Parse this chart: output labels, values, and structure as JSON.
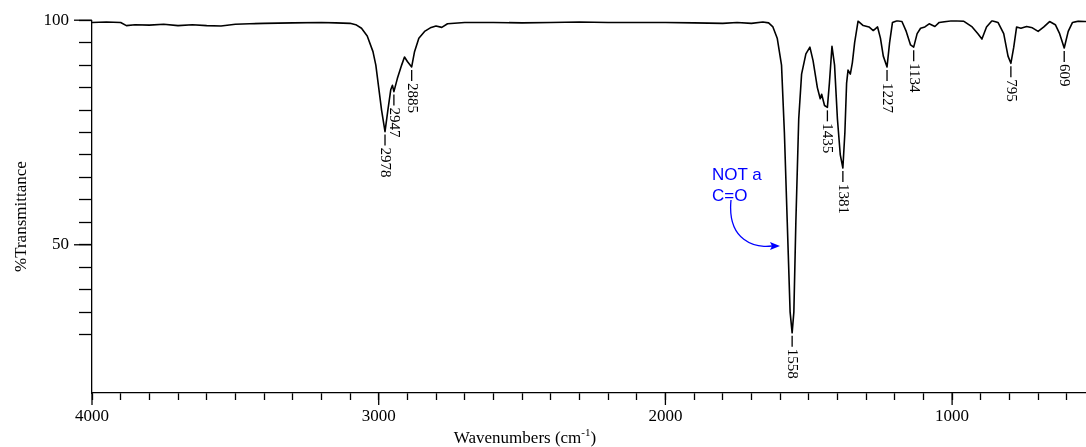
{
  "chart_data": {
    "type": "line",
    "xlabel": "Wavenumbers (cm$^{-1}$)",
    "ylabel": "%Transmittance",
    "xlim": [
      4000,
      533
    ],
    "ylim": [
      17,
      100
    ],
    "xticks": [
      4000,
      {
        "value": 3900,
        "label": null
      },
      {
        "value": 3800,
        "label": null
      },
      {
        "value": 3700,
        "label": null
      },
      {
        "value": 3600,
        "label": null
      },
      {
        "value": 3500,
        "label": null
      },
      {
        "value": 3400,
        "label": null
      },
      {
        "value": 3300,
        "label": null
      },
      {
        "value": 3200,
        "label": null
      },
      {
        "value": 3100,
        "label": null
      },
      3000,
      {
        "value": 2900,
        "label": null
      },
      {
        "value": 2800,
        "label": null
      },
      {
        "value": 2700,
        "label": null
      },
      {
        "value": 2600,
        "label": null
      },
      {
        "value": 2500,
        "label": null
      },
      {
        "value": 2400,
        "label": null
      },
      {
        "value": 2300,
        "label": null
      },
      {
        "value": 2200,
        "label": null
      },
      {
        "value": 2100,
        "label": null
      },
      2000,
      {
        "value": 1900,
        "label": null
      },
      {
        "value": 1800,
        "label": null
      },
      {
        "value": 1700,
        "label": null
      },
      {
        "value": 1600,
        "label": null
      },
      {
        "value": 1500,
        "label": null
      },
      {
        "value": 1400,
        "label": null
      },
      {
        "value": 1300,
        "label": null
      },
      {
        "value": 1200,
        "label": null
      },
      {
        "value": 1100,
        "label": null
      },
      1000,
      {
        "value": 900,
        "label": null
      },
      {
        "value": 800,
        "label": null
      },
      {
        "value": 700,
        "label": null
      },
      {
        "value": 600,
        "label": null
      }
    ],
    "yticks": [
      100,
      {
        "value": 95,
        "label": null
      },
      {
        "value": 90,
        "label": null
      },
      {
        "value": 85,
        "label": null
      },
      {
        "value": 80,
        "label": null
      },
      {
        "value": 75,
        "label": null
      },
      {
        "value": 70,
        "label": null
      },
      {
        "value": 65,
        "label": null
      },
      {
        "value": 60,
        "label": null
      },
      {
        "value": 55,
        "label": null
      },
      50,
      {
        "value": 45,
        "label": null
      },
      {
        "value": 40,
        "label": null
      },
      {
        "value": 35,
        "label": null
      },
      {
        "value": 30,
        "label": null
      }
    ],
    "grid": false,
    "legend": false,
    "marker": "none",
    "line_style": "solid",
    "series": [
      {
        "color": "#000000",
        "x": [
          4000,
          3950,
          3900,
          3880,
          3850,
          3800,
          3750,
          3700,
          3650,
          3600,
          3550,
          3500,
          3450,
          3400,
          3300,
          3200,
          3150,
          3100,
          3080,
          3060,
          3040,
          3020,
          3010,
          3000,
          2990,
          2978,
          2968,
          2958,
          2952,
          2947,
          2935,
          2920,
          2910,
          2900,
          2885,
          2875,
          2860,
          2840,
          2820,
          2800,
          2780,
          2760,
          2700,
          2600,
          2500,
          2400,
          2300,
          2200,
          2100,
          2000,
          1900,
          1800,
          1750,
          1700,
          1660,
          1640,
          1625,
          1610,
          1595,
          1585,
          1575,
          1565,
          1558,
          1552,
          1545,
          1535,
          1525,
          1510,
          1496,
          1485,
          1470,
          1460,
          1455,
          1445,
          1435,
          1428,
          1419,
          1410,
          1400,
          1390,
          1381,
          1374,
          1368,
          1363,
          1355,
          1348,
          1340,
          1328,
          1310,
          1290,
          1275,
          1260,
          1250,
          1240,
          1227,
          1218,
          1208,
          1192,
          1175,
          1160,
          1145,
          1134,
          1122,
          1110,
          1095,
          1080,
          1060,
          1045,
          1000,
          960,
          930,
          910,
          896,
          880,
          861,
          840,
          820,
          805,
          795,
          785,
          775,
          760,
          740,
          720,
          700,
          680,
          660,
          640,
          625,
          609,
          595,
          580,
          560,
          533
        ],
        "values": [
          99.5,
          99.6,
          99.5,
          98.8,
          99.0,
          98.9,
          99.1,
          98.8,
          99.0,
          98.8,
          98.7,
          99.1,
          99.2,
          99.3,
          99.4,
          99.5,
          99.4,
          99.3,
          99.0,
          98.2,
          96.5,
          93,
          90,
          85,
          80,
          75.2,
          80,
          84.5,
          85.5,
          84.1,
          87,
          90,
          91.8,
          90.8,
          89.6,
          93,
          96,
          97.5,
          98.3,
          98.7,
          98.4,
          99.2,
          99.5,
          99.5,
          99.4,
          99.5,
          99.6,
          99.5,
          99.5,
          99.5,
          99.4,
          99.3,
          99.5,
          99.3,
          99.6,
          99.4,
          98.5,
          96,
          90,
          75,
          55,
          35,
          30.4,
          35,
          55,
          78,
          88,
          92.5,
          94,
          91,
          85,
          82.5,
          83.5,
          81,
          80.6,
          86,
          94.2,
          90,
          78,
          70,
          67.1,
          75,
          86,
          88.9,
          88,
          90.5,
          95,
          99.8,
          98.8,
          98.5,
          97.7,
          98.5,
          96,
          92,
          89.6,
          95,
          99.5,
          99.9,
          99.7,
          97.5,
          94.5,
          94,
          97,
          98.2,
          98.5,
          99.2,
          98.6,
          99.5,
          99.9,
          99.8,
          98.5,
          97,
          95.8,
          98.5,
          99.9,
          99.5,
          97,
          92,
          90.4,
          94,
          98.5,
          98.2,
          98.6,
          98.3,
          97.5,
          98.5,
          99.7,
          99.0,
          97,
          93.8,
          97.5,
          99.5,
          99.8,
          99.7
        ]
      }
    ],
    "annotations": [
      {
        "text": "2978",
        "x": 2978,
        "y": 75.2
      },
      {
        "text": "2947",
        "x": 2947,
        "y": 84.1
      },
      {
        "text": "2885",
        "x": 2885,
        "y": 89.6
      },
      {
        "text": "1558",
        "x": 1558,
        "y": 30.4
      },
      {
        "text": "1435",
        "x": 1435,
        "y": 80.6
      },
      {
        "text": "1381",
        "x": 1381,
        "y": 67.1
      },
      {
        "text": "1227",
        "x": 1227,
        "y": 89.6
      },
      {
        "text": "1134",
        "x": 1134,
        "y": 94
      },
      {
        "text": "795",
        "x": 795,
        "y": 90.4
      },
      {
        "text": "609",
        "x": 609,
        "y": 93.8
      },
      "NOT a C=O"
    ]
  }
}
